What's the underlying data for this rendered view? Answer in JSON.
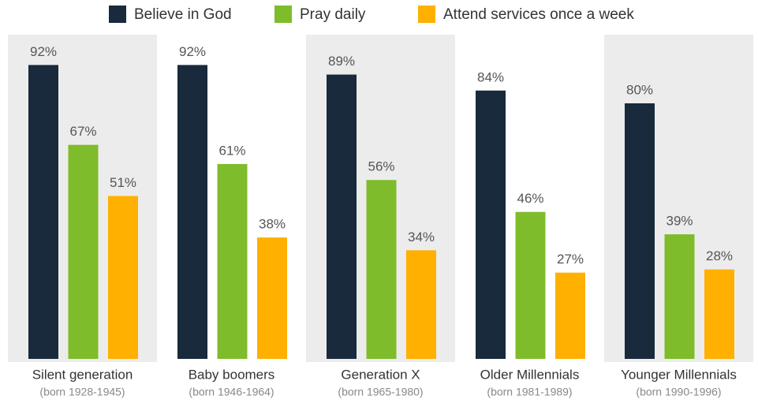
{
  "chart_data": {
    "type": "bar",
    "categories": [
      "Silent generation",
      "Baby boomers",
      "Generation X",
      "Older Millennials",
      "Younger Millennials"
    ],
    "category_subtitles": [
      "(born 1928-1945)",
      "(born 1946-1964)",
      "(born 1965-1980)",
      "(born 1981-1989)",
      "(born 1990-1996)"
    ],
    "series": [
      {
        "name": "Believe in God",
        "color": "#182a3b",
        "values": [
          92,
          92,
          89,
          84,
          80
        ],
        "value_labels": [
          "92%",
          "92%",
          "89%",
          "84%",
          "80%"
        ]
      },
      {
        "name": "Pray daily",
        "color": "#7fbc2b",
        "values": [
          67,
          61,
          56,
          46,
          39
        ],
        "value_labels": [
          "67%",
          "61%",
          "56%",
          "46%",
          "39%"
        ]
      },
      {
        "name": "Attend services once a week",
        "color": "#ffb000",
        "values": [
          51,
          38,
          34,
          27,
          28
        ],
        "value_labels": [
          "51%",
          "38%",
          "34%",
          "27%",
          "28%"
        ]
      }
    ],
    "ylim": [
      0,
      100
    ],
    "legend": "top"
  }
}
